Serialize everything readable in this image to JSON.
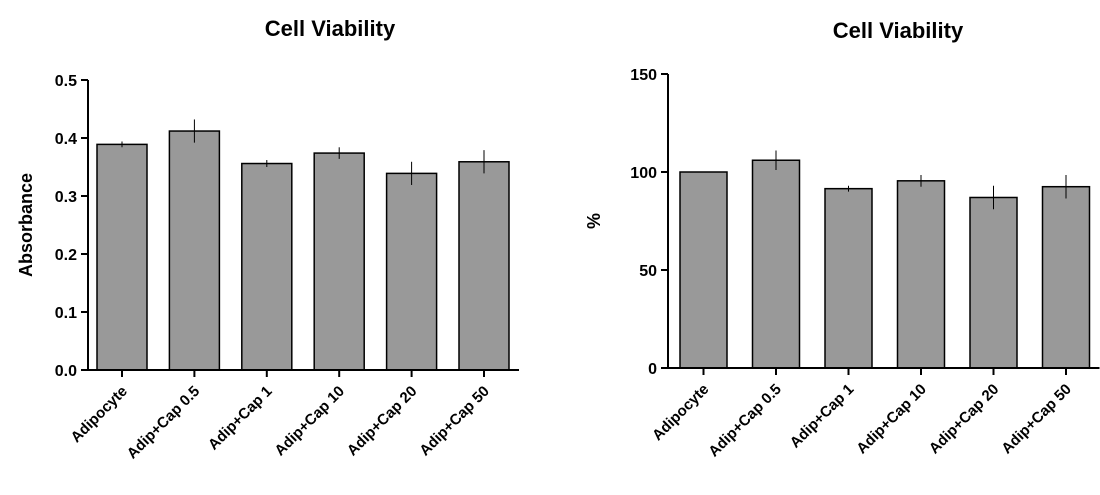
{
  "chart_data": [
    {
      "type": "bar",
      "title": "Cell Viability",
      "xlabel": "",
      "ylabel": "Absorbance",
      "ylim": [
        0,
        0.5
      ],
      "yticks": [
        "0.0",
        "0.1",
        "0.2",
        "0.3",
        "0.4",
        "0.5"
      ],
      "categories": [
        "Adipocyte",
        "Adip+Cap 0.5",
        "Adip+Cap 1",
        "Adip+Cap 10",
        "Adip+Cap 20",
        "Adip+Cap 50"
      ],
      "values": [
        0.389,
        0.412,
        0.356,
        0.374,
        0.339,
        0.359
      ],
      "errors": [
        0.005,
        0.02,
        0.006,
        0.01,
        0.02,
        0.02
      ],
      "bar_color": "#999999",
      "grid": false,
      "legend": "none"
    },
    {
      "type": "bar",
      "title": "Cell Viability",
      "xlabel": "",
      "ylabel": "%",
      "ylim": [
        0,
        150
      ],
      "yticks": [
        "0",
        "50",
        "100",
        "150"
      ],
      "categories": [
        "Adipocyte",
        "Adip+Cap 0.5",
        "Adip+Cap 1",
        "Adip+Cap 10",
        "Adip+Cap 20",
        "Adip+Cap 50"
      ],
      "values": [
        100,
        106,
        91.5,
        95.5,
        87,
        92.5
      ],
      "errors": [
        0,
        5,
        1.5,
        3,
        6,
        6
      ],
      "bar_color": "#999999",
      "grid": false,
      "legend": "none"
    }
  ]
}
